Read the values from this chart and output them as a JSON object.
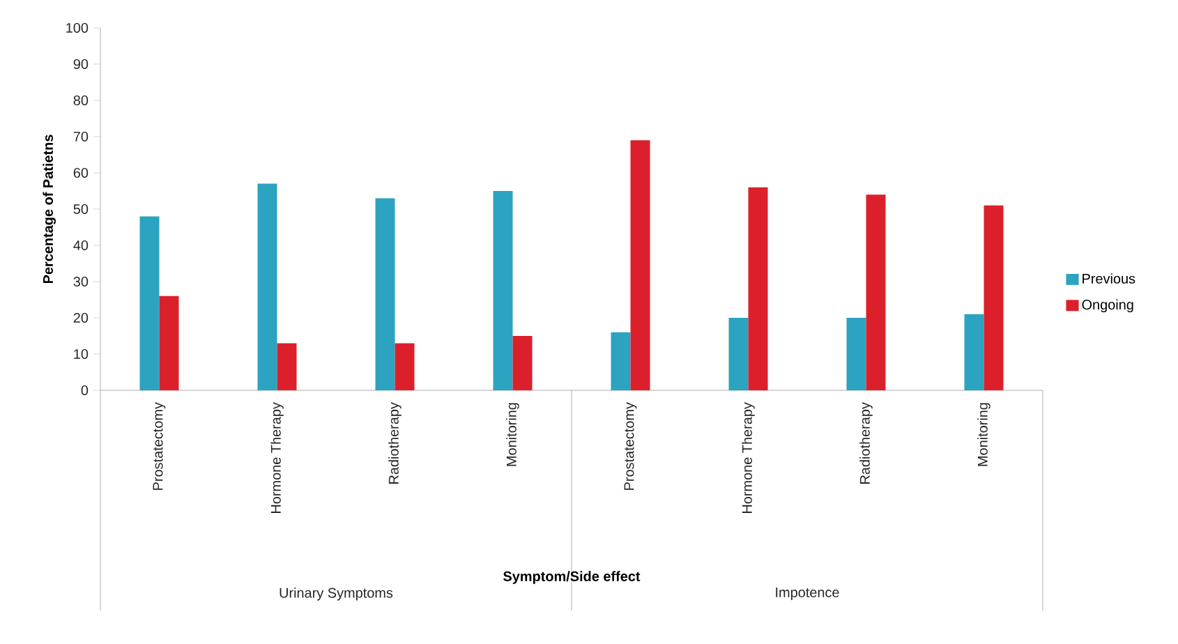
{
  "chart_data": {
    "type": "bar",
    "xlabel": "Symptom/Side effect",
    "ylabel": "Percentage of Patietns",
    "categories": [
      "Prostatectomy",
      "Hormone Therapy",
      "Radiotherapy",
      "Monitoring",
      "Prostatectomy",
      "Hormone Therapy",
      "Radiotherapy",
      "Monitoring"
    ],
    "series": [
      {
        "name": "Previous",
        "color": "#2ca3c1",
        "values": [
          48,
          57,
          53,
          55,
          16,
          20,
          20,
          21
        ]
      },
      {
        "name": "Ongoing",
        "color": "#dc202b",
        "values": [
          26,
          13,
          13,
          15,
          69,
          56,
          54,
          51
        ]
      }
    ],
    "annotations": [
      "Urinary Symptoms",
      "Impotence"
    ],
    "ylim": [
      0,
      100
    ],
    "yticks": [
      0,
      10,
      20,
      30,
      40,
      50,
      60,
      70,
      80,
      90,
      100
    ],
    "grid": false,
    "legend": "right"
  }
}
